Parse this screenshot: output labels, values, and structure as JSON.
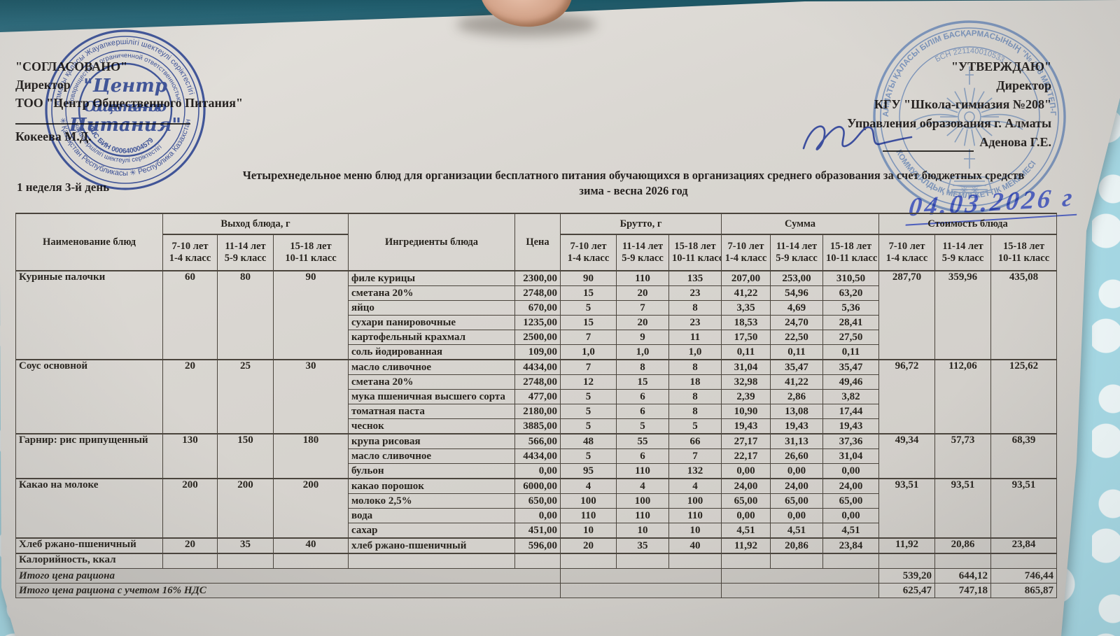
{
  "colors": {
    "stamp_blue_left": "#3954ae",
    "stamp_blue_right": "#7fa3de",
    "handwriting_blue": "#5061bd",
    "paper": "#d8d5d0",
    "background_teal": "#2e6d7e",
    "background_cyan": "#a9dde9",
    "totals_row_grey": "#c8c5c0"
  },
  "header_left": {
    "approved": "\"СОГЛАСОВАНО\"",
    "role": "Директор",
    "org": "ТОО \"Центр Общественного Питания\"",
    "signer": "Кокеева М.Д."
  },
  "header_right": {
    "approved": "\"УТВЕРЖДАЮ\"",
    "role": "Директор",
    "org": "КГУ \"Школа-гимназия №208\"",
    "org2": "Управления образования г. Алматы",
    "signer": "Аденова Г.Е."
  },
  "stamp_left": {
    "center_line1": "\"Центр",
    "center_line2": "Общественного",
    "center_line3": "Питания\"",
    "bin": "ЖШС БИН 000640004579",
    "ring1_top": "Алматы қаласы Жауапкершілігі шектеулі серіктестігі",
    "ring1_bottom": "✳ Қазақстан Республикасы ✳ Республика Казахстан",
    "ring2_top": "Товарищество с ограниченной ответственностью",
    "ring2_bottom": "жауапкершілігі шектеулі серіктестігі"
  },
  "stamp_right": {
    "ring1": "АЛМАТЫ ҚАЛАСЫ БІЛІМ БАСҚАРМАСЫНЫҢ \"№ 208 МЕКТЕП-ГИМНАЗИЯСЫ\"",
    "ring2": "КОММУНАЛДЫҚ МЕМЛЕКЕТТІК МЕКЕМЕСІ",
    "bin": "БСН 221140010533",
    "bottom_marks": "✳ ✳"
  },
  "handwritten_date": "04.03.2026 г",
  "title": {
    "line1": "Четырехнедельное меню блюд для организации бесплатного питания обучающихся в организациях среднего образования за счет бюджетных средств",
    "line2": "зима - весна 2026 год"
  },
  "week_day_label": "1 неделя 3-й день",
  "table": {
    "col_headers": {
      "name": "Наименование блюд",
      "output": "Выход блюда, г",
      "ingredients": "Ингредиенты блюда",
      "price": "Цена",
      "brutto": "Брутто, г",
      "sum": "Сумма",
      "cost": "Стоимость блюда"
    },
    "age_groups": [
      {
        "line1": "7-10 лет",
        "line2": "1-4 класс"
      },
      {
        "line1": "11-14 лет",
        "line2": "5-9 класс"
      },
      {
        "line1": "15-18 лет",
        "line2": "10-11 класс"
      }
    ],
    "dishes": [
      {
        "name": "Куриные палочки",
        "outputs": [
          "60",
          "80",
          "90"
        ],
        "cost": [
          "287,70",
          "359,96",
          "435,08"
        ],
        "ingredients": [
          {
            "name": "филе курицы",
            "price": "2300,00",
            "brutto": [
              "90",
              "110",
              "135"
            ],
            "sum": [
              "207,00",
              "253,00",
              "310,50"
            ]
          },
          {
            "name": "сметана 20%",
            "price": "2748,00",
            "brutto": [
              "15",
              "20",
              "23"
            ],
            "sum": [
              "41,22",
              "54,96",
              "63,20"
            ]
          },
          {
            "name": "яйцо",
            "price": "670,00",
            "brutto": [
              "5",
              "7",
              "8"
            ],
            "sum": [
              "3,35",
              "4,69",
              "5,36"
            ]
          },
          {
            "name": "сухари панировочные",
            "price": "1235,00",
            "brutto": [
              "15",
              "20",
              "23"
            ],
            "sum": [
              "18,53",
              "24,70",
              "28,41"
            ]
          },
          {
            "name": "картофельный крахмал",
            "price": "2500,00",
            "brutto": [
              "7",
              "9",
              "11"
            ],
            "sum": [
              "17,50",
              "22,50",
              "27,50"
            ]
          },
          {
            "name": "соль йодированная",
            "price": "109,00",
            "brutto": [
              "1,0",
              "1,0",
              "1,0"
            ],
            "sum": [
              "0,11",
              "0,11",
              "0,11"
            ]
          }
        ]
      },
      {
        "name": "Соус основной",
        "outputs": [
          "20",
          "25",
          "30"
        ],
        "cost": [
          "96,72",
          "112,06",
          "125,62"
        ],
        "ingredients": [
          {
            "name": "масло сливочное",
            "price": "4434,00",
            "brutto": [
              "7",
              "8",
              "8"
            ],
            "sum": [
              "31,04",
              "35,47",
              "35,47"
            ]
          },
          {
            "name": "сметана 20%",
            "price": "2748,00",
            "brutto": [
              "12",
              "15",
              "18"
            ],
            "sum": [
              "32,98",
              "41,22",
              "49,46"
            ]
          },
          {
            "name": "мука пшеничная высшего сорта",
            "price": "477,00",
            "brutto": [
              "5",
              "6",
              "8"
            ],
            "sum": [
              "2,39",
              "2,86",
              "3,82"
            ]
          },
          {
            "name": "томатная паста",
            "price": "2180,00",
            "brutto": [
              "5",
              "6",
              "8"
            ],
            "sum": [
              "10,90",
              "13,08",
              "17,44"
            ]
          },
          {
            "name": "чеснок",
            "price": "3885,00",
            "brutto": [
              "5",
              "5",
              "5"
            ],
            "sum": [
              "19,43",
              "19,43",
              "19,43"
            ]
          }
        ]
      },
      {
        "name": "Гарнир: рис припущенный",
        "outputs": [
          "130",
          "150",
          "180"
        ],
        "cost": [
          "49,34",
          "57,73",
          "68,39"
        ],
        "ingredients": [
          {
            "name": "крупа рисовая",
            "price": "566,00",
            "brutto": [
              "48",
              "55",
              "66"
            ],
            "sum": [
              "27,17",
              "31,13",
              "37,36"
            ]
          },
          {
            "name": "масло сливочное",
            "price": "4434,00",
            "brutto": [
              "5",
              "6",
              "7"
            ],
            "sum": [
              "22,17",
              "26,60",
              "31,04"
            ]
          },
          {
            "name": "бульон",
            "price": "0,00",
            "brutto": [
              "95",
              "110",
              "132"
            ],
            "sum": [
              "0,00",
              "0,00",
              "0,00"
            ]
          }
        ]
      },
      {
        "name": "Какао на молоке",
        "outputs": [
          "200",
          "200",
          "200"
        ],
        "cost": [
          "93,51",
          "93,51",
          "93,51"
        ],
        "ingredients": [
          {
            "name": "какао порошок",
            "price": "6000,00",
            "brutto": [
              "4",
              "4",
              "4"
            ],
            "sum": [
              "24,00",
              "24,00",
              "24,00"
            ]
          },
          {
            "name": "молоко 2,5%",
            "price": "650,00",
            "brutto": [
              "100",
              "100",
              "100"
            ],
            "sum": [
              "65,00",
              "65,00",
              "65,00"
            ]
          },
          {
            "name": "вода",
            "price": "0,00",
            "brutto": [
              "110",
              "110",
              "110"
            ],
            "sum": [
              "0,00",
              "0,00",
              "0,00"
            ]
          },
          {
            "name": "сахар",
            "price": "451,00",
            "brutto": [
              "10",
              "10",
              "10"
            ],
            "sum": [
              "4,51",
              "4,51",
              "4,51"
            ]
          }
        ]
      },
      {
        "name": "Хлеб ржано-пшеничный",
        "outputs": [
          "20",
          "35",
          "40"
        ],
        "cost": [
          "11,92",
          "20,86",
          "23,84"
        ],
        "ingredients": [
          {
            "name": "хлеб ржано-пшеничный",
            "price": "596,00",
            "brutto": [
              "20",
              "35",
              "40"
            ],
            "sum": [
              "11,92",
              "20,86",
              "23,84"
            ]
          }
        ]
      }
    ],
    "footer_rows": [
      {
        "label": "Калорийность, ккал",
        "style": "kcal",
        "values": [
          "",
          "",
          ""
        ]
      },
      {
        "label": "Итого цена рациона",
        "style": "totals",
        "values": [
          "539,20",
          "644,12",
          "746,44"
        ]
      },
      {
        "label": "Итого цена рациона с учетом 16% НДС",
        "style": "totals",
        "values": [
          "625,47",
          "747,18",
          "865,87"
        ]
      }
    ]
  }
}
